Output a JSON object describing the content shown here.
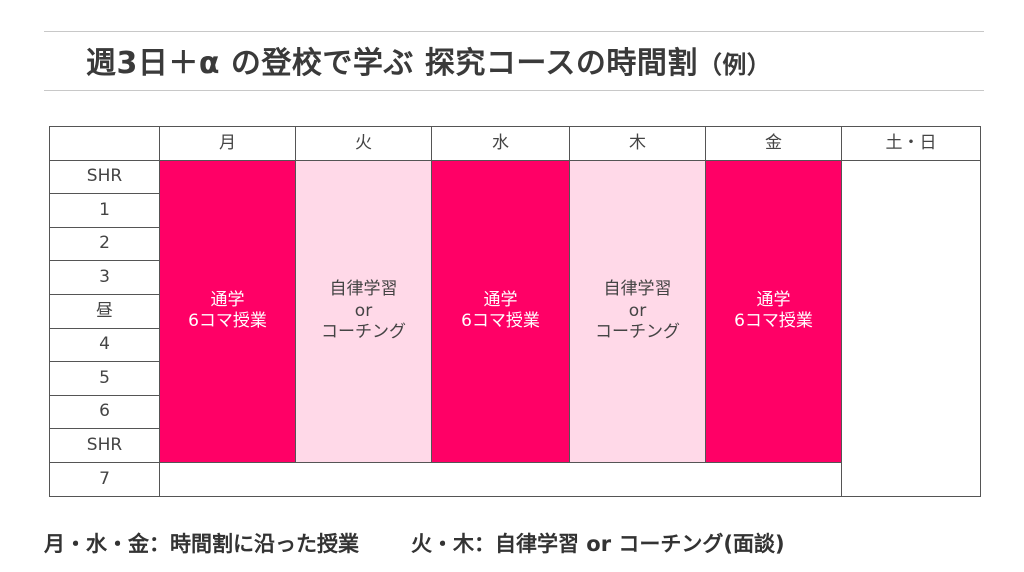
{
  "title": {
    "main": "週3日＋α の登校で学ぶ 探究コースの時間割",
    "note": "（例）"
  },
  "table": {
    "days": [
      "月",
      "火",
      "水",
      "木",
      "金",
      "土・日"
    ],
    "periods": [
      "SHR",
      "1",
      "2",
      "3",
      "昼",
      "4",
      "5",
      "6",
      "SHR",
      "7"
    ],
    "commute_block": {
      "line1": "通学",
      "line2": "6コマ授業"
    },
    "self_block": {
      "line1": "自律学習",
      "line2": "or",
      "line3": "コーチング"
    }
  },
  "footer": {
    "left": "月・水・金：時間割に沿った授業",
    "right": "火・木：自律学習 or コーチング(面談)"
  },
  "colors": {
    "accent": "#ff0066",
    "light": "#ffd9e8"
  }
}
